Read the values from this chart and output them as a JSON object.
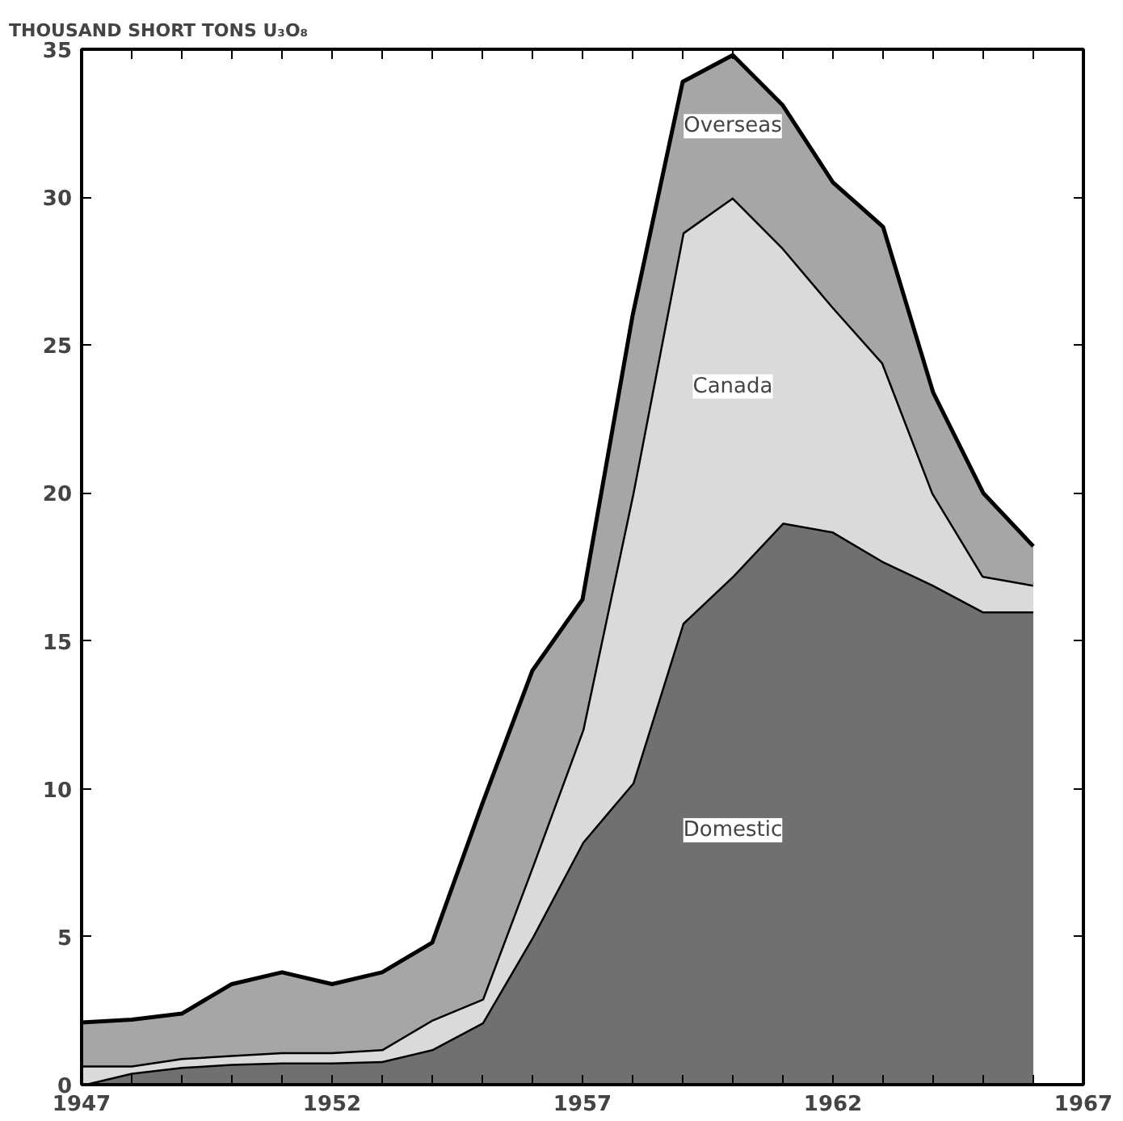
{
  "chart_data": {
    "type": "area",
    "stacked": true,
    "ylabel": "THOUSAND SHORT TONS U₃O₈",
    "x": [
      1947,
      1948,
      1949,
      1950,
      1951,
      1952,
      1953,
      1954,
      1955,
      1956,
      1957,
      1958,
      1959,
      1960,
      1961,
      1962,
      1963,
      1964,
      1965,
      1966
    ],
    "series": [
      {
        "name": "Domestic",
        "color": "#707070",
        "values": [
          0,
          0.4,
          0.6,
          0.7,
          0.75,
          0.75,
          0.8,
          1.2,
          2.1,
          5.0,
          8.2,
          10.2,
          15.6,
          17.2,
          19.0,
          18.7,
          17.7,
          16.9,
          16.0,
          16.0
        ]
      },
      {
        "name": "Canada",
        "color": "#dadada",
        "values": [
          0.65,
          0.25,
          0.3,
          0.3,
          0.35,
          0.35,
          0.4,
          1.0,
          0.8,
          2.4,
          3.8,
          9.8,
          13.2,
          12.8,
          9.3,
          7.6,
          6.7,
          3.1,
          1.2,
          0.9
        ]
      },
      {
        "name": "Overseas",
        "color": "#a6a6a6",
        "values": [
          1.45,
          1.55,
          1.5,
          2.4,
          2.7,
          2.3,
          2.6,
          2.6,
          6.6,
          6.6,
          4.4,
          6.0,
          5.1,
          4.8,
          4.8,
          4.2,
          4.6,
          3.4,
          2.8,
          1.3
        ]
      }
    ],
    "xlim": [
      1947,
      1967
    ],
    "xticks": [
      1947,
      {
        "value": 1948,
        "label": null
      },
      {
        "value": 1949,
        "label": null
      },
      {
        "value": 1950,
        "label": null
      },
      {
        "value": 1951,
        "label": null
      },
      1952,
      {
        "value": 1953,
        "label": null
      },
      {
        "value": 1954,
        "label": null
      },
      {
        "value": 1955,
        "label": null
      },
      {
        "value": 1956,
        "label": null
      },
      1957,
      {
        "value": 1958,
        "label": null
      },
      {
        "value": 1959,
        "label": null
      },
      {
        "value": 1960,
        "label": null
      },
      {
        "value": 1961,
        "label": null
      },
      1962,
      {
        "value": 1963,
        "label": null
      },
      {
        "value": 1964,
        "label": null
      },
      {
        "value": 1965,
        "label": null
      },
      {
        "value": 1966,
        "label": null
      },
      1967
    ],
    "ylim": [
      0,
      35
    ],
    "yticks": [
      0,
      5,
      10,
      15,
      20,
      25,
      30,
      35
    ],
    "grid": false,
    "line_style": "solid"
  }
}
